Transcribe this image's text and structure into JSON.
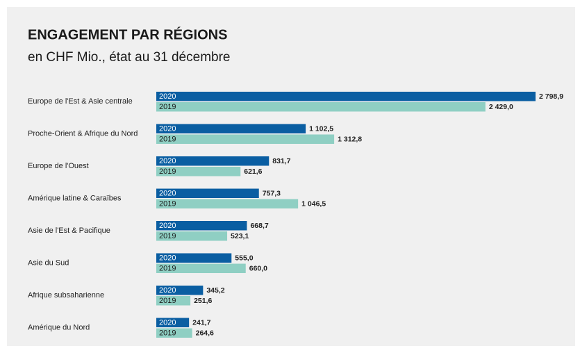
{
  "chart_data": {
    "type": "bar",
    "orientation": "horizontal",
    "title": "ENGAGEMENT PAR RÉGIONS",
    "subtitle": "en CHF Mio., état au 31 décembre",
    "categories": [
      "Europe de l'Est & Asie centrale",
      "Proche-Orient & Afrique du Nord",
      "Europe de l'Ouest",
      "Amérique latine & Caraïbes",
      "Asie de l'Est & Pacifique",
      "Asie du Sud",
      "Afrique subsaharienne",
      "Amérique du Nord"
    ],
    "series": [
      {
        "name": "2020",
        "color": "#0a5ea2",
        "values": [
          2798.9,
          1102.5,
          831.7,
          757.3,
          668.7,
          555.0,
          345.2,
          241.7
        ],
        "value_labels": [
          "2 798,9",
          "1 102,5",
          "831,7",
          "757,3",
          "668,7",
          "555,0",
          "345,2",
          "241,7"
        ]
      },
      {
        "name": "2019",
        "color": "#8fcfc3",
        "values": [
          2429.0,
          1312.8,
          621.6,
          1046.5,
          523.1,
          660.0,
          251.6,
          264.6
        ],
        "value_labels": [
          "2 429,0",
          "1 312,8",
          "621,6",
          "1 046,5",
          "523,1",
          "660,0",
          "251,6",
          "264,6"
        ]
      }
    ]
  }
}
